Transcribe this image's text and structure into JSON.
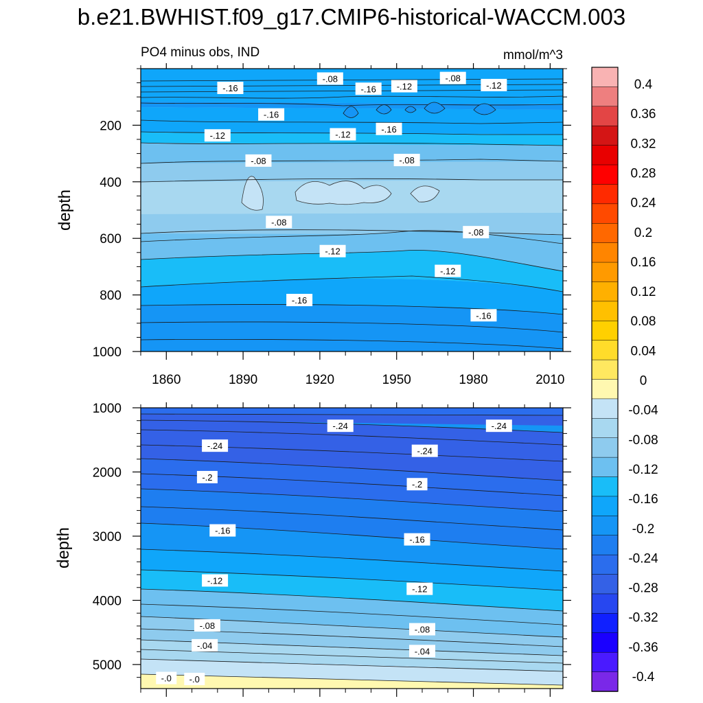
{
  "title": "b.e21.BWHIST.f09_g17.CMIP6-historical-WACCM.003",
  "chart_data": {
    "type": "contour",
    "subtitle_left": "PO4 minus obs, IND",
    "subtitle_right": "mmol/m^3",
    "x_ticks": [
      "1860",
      "1890",
      "1920",
      "1950",
      "1980",
      "2010"
    ],
    "x_tick_values": [
      1860,
      1890,
      1920,
      1950,
      1980,
      2010
    ],
    "xlim": [
      1850,
      2015
    ],
    "colorbar": {
      "labels": [
        "0.4",
        "0.36",
        "0.32",
        "0.28",
        "0.24",
        "0.2",
        "0.16",
        "0.12",
        "0.08",
        "0.04",
        "0",
        "-0.04",
        "-0.08",
        "-0.12",
        "-0.16",
        "-0.2",
        "-0.24",
        "-0.28",
        "-0.32",
        "-0.36",
        "-0.4"
      ],
      "colors": [
        "#f9b3b3",
        "#ee7f7f",
        "#e34545",
        "#d41515",
        "#e80000",
        "#ff0000",
        "#ff2a00",
        "#ff4a00",
        "#ff6800",
        "#ff8500",
        "#ff9a00",
        "#ffb000",
        "#ffc000",
        "#ffd000",
        "#ffdc2a",
        "#ffe860",
        "#fff8b0",
        "#c4e3f6",
        "#a8d8f0",
        "#8ecbee",
        "#6dc0f0",
        "#19bdf8",
        "#0fa6fa",
        "#1595f5",
        "#1e7ef0",
        "#2b6ded",
        "#3461e6",
        "#2747f0",
        "#1020ff",
        "#1a00ff",
        "#4a1aff",
        "#7a28e8"
      ]
    },
    "panels": [
      {
        "ylabel": "depth",
        "y_ticks": [
          "200",
          "400",
          "600",
          "800",
          "1000"
        ],
        "y_tick_values": [
          200,
          400,
          600,
          800,
          1000
        ],
        "ylim": [
          0,
          1000
        ],
        "contour_labels": [
          {
            "text": "-.08",
            "x": 1924,
            "y": 35
          },
          {
            "text": "-.08",
            "x": 1972,
            "y": 33
          },
          {
            "text": "-.16",
            "x": 1885,
            "y": 68
          },
          {
            "text": "-.16",
            "x": 1939,
            "y": 71
          },
          {
            "text": "-.12",
            "x": 1953,
            "y": 62
          },
          {
            "text": "-.12",
            "x": 1988,
            "y": 58
          },
          {
            "text": "-.16",
            "x": 1901,
            "y": 162
          },
          {
            "text": "-.12",
            "x": 1880,
            "y": 236
          },
          {
            "text": "-.12",
            "x": 1929,
            "y": 232
          },
          {
            "text": "-.16",
            "x": 1947,
            "y": 213
          },
          {
            "text": "-.08",
            "x": 1896,
            "y": 325
          },
          {
            "text": "-.08",
            "x": 1954,
            "y": 323
          },
          {
            "text": "-.08",
            "x": 1904,
            "y": 542
          },
          {
            "text": "-.08",
            "x": 1981,
            "y": 578
          },
          {
            "text": "-.12",
            "x": 1925,
            "y": 645
          },
          {
            "text": "-.12",
            "x": 1970,
            "y": 715
          },
          {
            "text": "-.16",
            "x": 1912,
            "y": 818
          },
          {
            "text": "-.16",
            "x": 1984,
            "y": 872
          }
        ]
      },
      {
        "ylabel": "depth",
        "y_ticks": [
          "1000",
          "2000",
          "3000",
          "4000",
          "5000"
        ],
        "y_tick_values": [
          1000,
          2000,
          3000,
          4000,
          5000
        ],
        "ylim": [
          1000,
          5375
        ],
        "contour_labels": [
          {
            "text": "-.24",
            "x": 1928,
            "y": 1280
          },
          {
            "text": "-.24",
            "x": 1990,
            "y": 1280
          },
          {
            "text": "-.24",
            "x": 1879,
            "y": 1590
          },
          {
            "text": "-.24",
            "x": 1961,
            "y": 1670
          },
          {
            "text": "-.2",
            "x": 1876,
            "y": 2080
          },
          {
            "text": "-.2",
            "x": 1958,
            "y": 2190
          },
          {
            "text": "-.16",
            "x": 1882,
            "y": 2910
          },
          {
            "text": "-.16",
            "x": 1958,
            "y": 3050
          },
          {
            "text": "-.12",
            "x": 1879,
            "y": 3690
          },
          {
            "text": "-.12",
            "x": 1959,
            "y": 3820
          },
          {
            "text": "-.08",
            "x": 1876,
            "y": 4390
          },
          {
            "text": "-.08",
            "x": 1960,
            "y": 4450
          },
          {
            "text": "-.04",
            "x": 1875,
            "y": 4700
          },
          {
            "text": "-.04",
            "x": 1960,
            "y": 4790
          },
          {
            "text": "-.0",
            "x": 1860,
            "y": 5210
          },
          {
            "text": "-.0",
            "x": 1871,
            "y": 5225
          }
        ]
      }
    ]
  }
}
